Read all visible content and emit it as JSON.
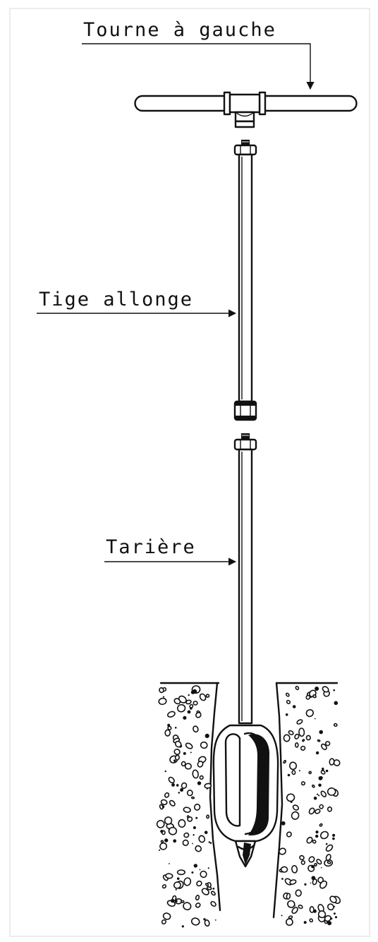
{
  "labels": {
    "handle": "Tourne à gauche",
    "extension_rod": "Tige allonge",
    "auger": "Tarière"
  },
  "colors": {
    "ink": "#111111",
    "paper": "#ffffff",
    "frame": "#e6e6e6"
  }
}
